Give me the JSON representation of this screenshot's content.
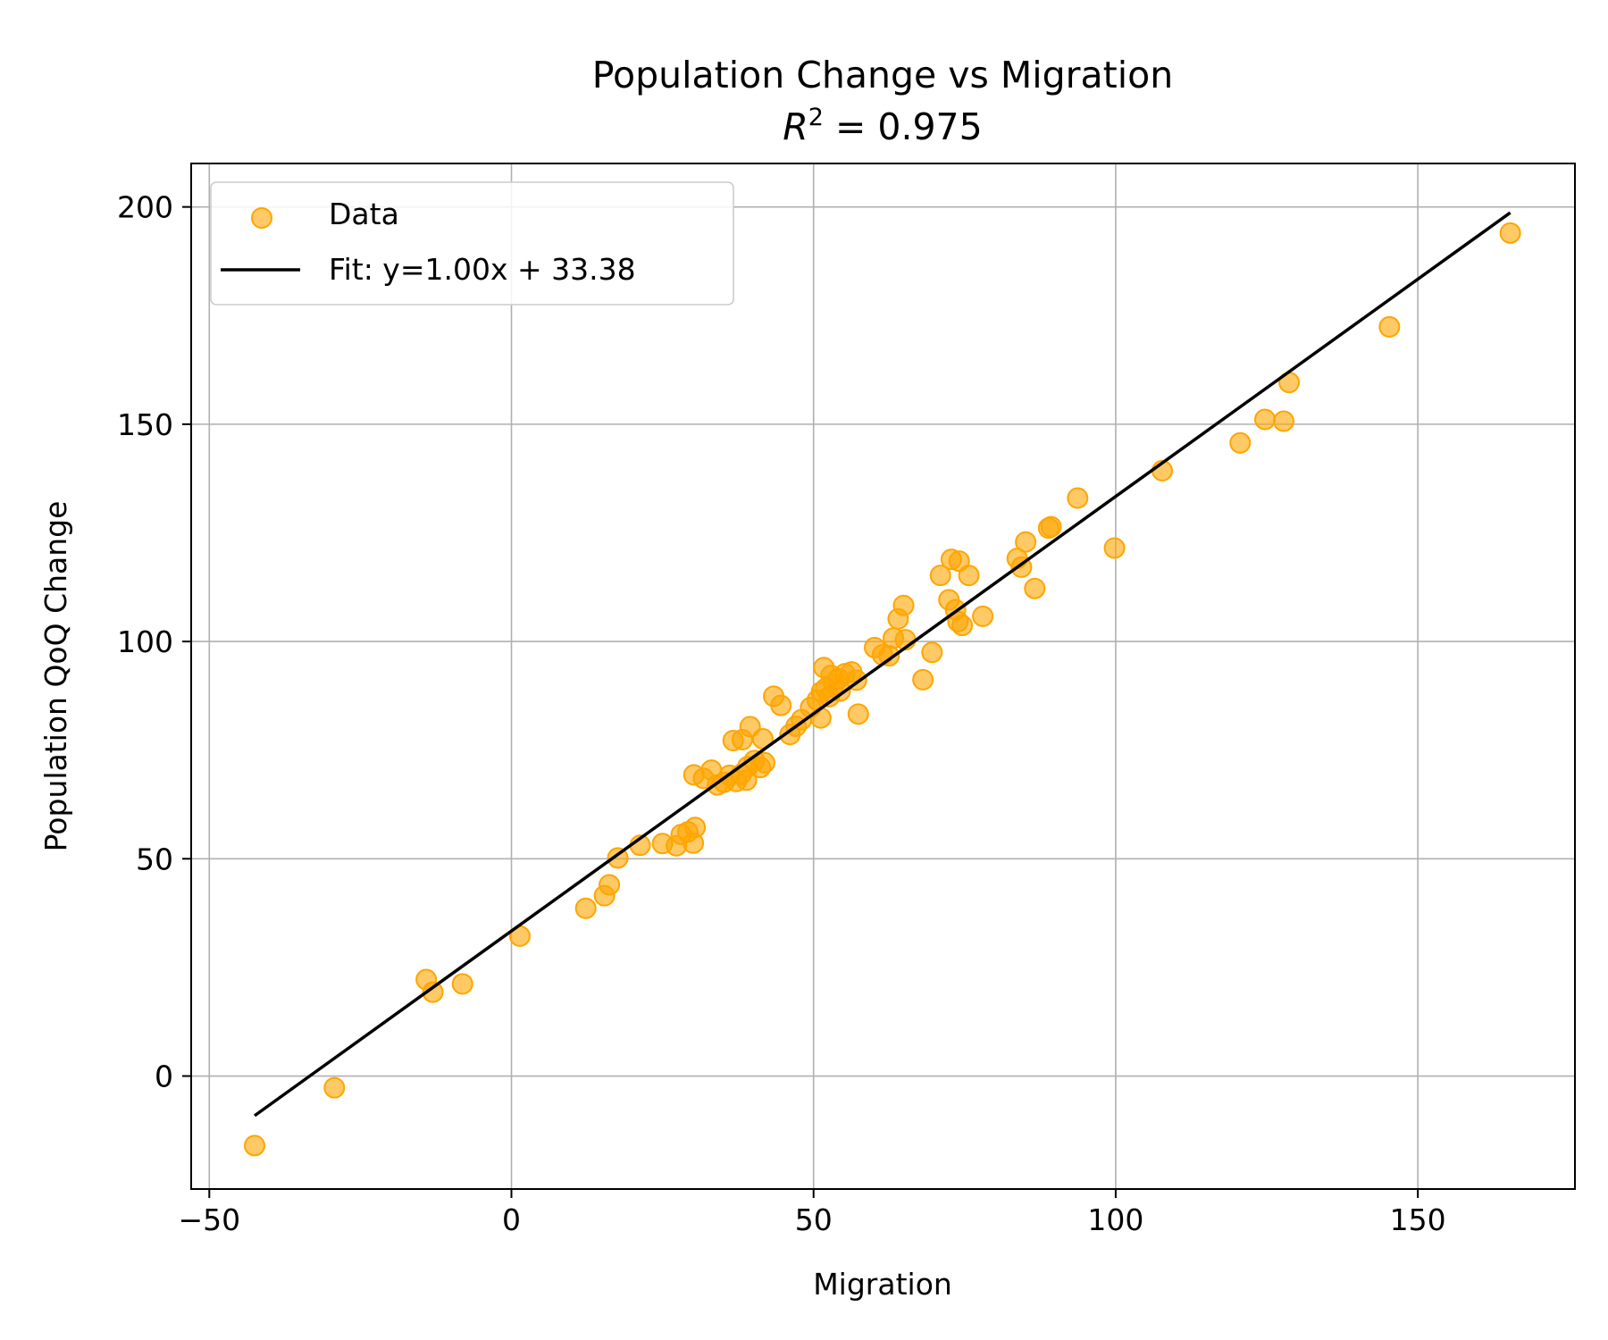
{
  "chart_data": {
    "type": "scatter",
    "title": "Population Change vs Migration",
    "subtitle_prefix": "R",
    "subtitle_sup": "2",
    "subtitle_rest": " = 0.975",
    "xlabel": "Migration",
    "ylabel": "Population QoQ Change",
    "xlim": [
      -53,
      176
    ],
    "ylim": [
      -26,
      210
    ],
    "xticks": [
      -50,
      0,
      50,
      100,
      150
    ],
    "xtick_labels": [
      "−50",
      "0",
      "50",
      "100",
      "150"
    ],
    "yticks": [
      0,
      50,
      100,
      150,
      200
    ],
    "ytick_labels": [
      "0",
      "50",
      "100",
      "150",
      "200"
    ],
    "grid": true,
    "legend_position": "top-left",
    "point_color": "#ffa500",
    "line_color": "#000000",
    "series": [
      {
        "name": "Data",
        "kind": "scatter",
        "points": [
          [
            -42.5,
            -16
          ],
          [
            -29.3,
            -2.7
          ],
          [
            -14.1,
            22.2
          ],
          [
            -13.0,
            19.3
          ],
          [
            -8.1,
            21.2
          ],
          [
            1.4,
            32.2
          ],
          [
            12.3,
            38.6
          ],
          [
            15.4,
            41.5
          ],
          [
            16.2,
            44.0
          ],
          [
            17.6,
            50.2
          ],
          [
            21.3,
            53.1
          ],
          [
            25.0,
            53.5
          ],
          [
            27.3,
            53.0
          ],
          [
            28.1,
            55.6
          ],
          [
            29.2,
            56.2
          ],
          [
            30.1,
            53.6
          ],
          [
            30.4,
            57.2
          ],
          [
            30.2,
            69.3
          ],
          [
            31.8,
            68.5
          ],
          [
            33.1,
            70.4
          ],
          [
            34.1,
            67.0
          ],
          [
            35.2,
            67.6
          ],
          [
            36.1,
            69.2
          ],
          [
            37.2,
            67.8
          ],
          [
            38.0,
            69.4
          ],
          [
            38.9,
            68.1
          ],
          [
            39.1,
            71.2
          ],
          [
            40.2,
            72.6
          ],
          [
            41.2,
            71.0
          ],
          [
            41.9,
            72.1
          ],
          [
            36.7,
            77.2
          ],
          [
            38.2,
            77.4
          ],
          [
            39.5,
            80.4
          ],
          [
            41.6,
            77.6
          ],
          [
            43.4,
            87.4
          ],
          [
            44.6,
            85.3
          ],
          [
            46.1,
            78.6
          ],
          [
            47.1,
            80.5
          ],
          [
            48.0,
            82.0
          ],
          [
            49.5,
            84.8
          ],
          [
            50.6,
            86.5
          ],
          [
            51.3,
            88.4
          ],
          [
            51.2,
            82.4
          ],
          [
            52.0,
            89.2
          ],
          [
            52.6,
            87.3
          ],
          [
            53.4,
            90.1
          ],
          [
            51.7,
            94.0
          ],
          [
            52.9,
            92.2
          ],
          [
            54.1,
            91.4
          ],
          [
            55.2,
            92.6
          ],
          [
            56.3,
            93.0
          ],
          [
            57.1,
            91.1
          ],
          [
            54.4,
            88.6
          ],
          [
            57.4,
            83.3
          ],
          [
            60.1,
            98.6
          ],
          [
            61.4,
            96.9
          ],
          [
            62.5,
            96.7
          ],
          [
            63.2,
            100.8
          ],
          [
            64.0,
            105.2
          ],
          [
            64.9,
            108.3
          ],
          [
            65.2,
            100.4
          ],
          [
            68.1,
            91.2
          ],
          [
            69.6,
            97.5
          ],
          [
            71.0,
            115.2
          ],
          [
            72.4,
            109.6
          ],
          [
            72.8,
            118.9
          ],
          [
            73.5,
            107.3
          ],
          [
            74.1,
            118.5
          ],
          [
            73.9,
            104.6
          ],
          [
            74.6,
            103.7
          ],
          [
            75.7,
            115.2
          ],
          [
            78.0,
            105.8
          ],
          [
            83.7,
            119.1
          ],
          [
            84.4,
            117.1
          ],
          [
            85.1,
            122.9
          ],
          [
            86.6,
            112.2
          ],
          [
            88.9,
            126.1
          ],
          [
            89.3,
            126.4
          ],
          [
            93.7,
            133.0
          ],
          [
            99.8,
            121.5
          ],
          [
            107.7,
            139.3
          ],
          [
            120.6,
            145.7
          ],
          [
            124.7,
            151.1
          ],
          [
            127.8,
            150.7
          ],
          [
            128.7,
            159.6
          ],
          [
            145.3,
            172.4
          ],
          [
            165.3,
            194.0
          ]
        ]
      },
      {
        "name": "Fit: y=1.00x + 33.38",
        "kind": "line",
        "slope": 1.0,
        "intercept": 33.38,
        "x_range": [
          -42.5,
          165.3
        ]
      }
    ]
  }
}
